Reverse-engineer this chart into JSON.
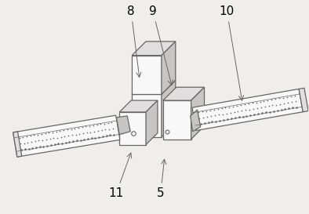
{
  "bg_color": "#f0eeea",
  "line_color": "#666666",
  "fill_white": "#f8f8f8",
  "fill_light": "#e0dede",
  "fill_dark": "#c8c6c4",
  "figsize": [
    3.94,
    2.73
  ],
  "dpi": 100,
  "label_fontsize": 11
}
